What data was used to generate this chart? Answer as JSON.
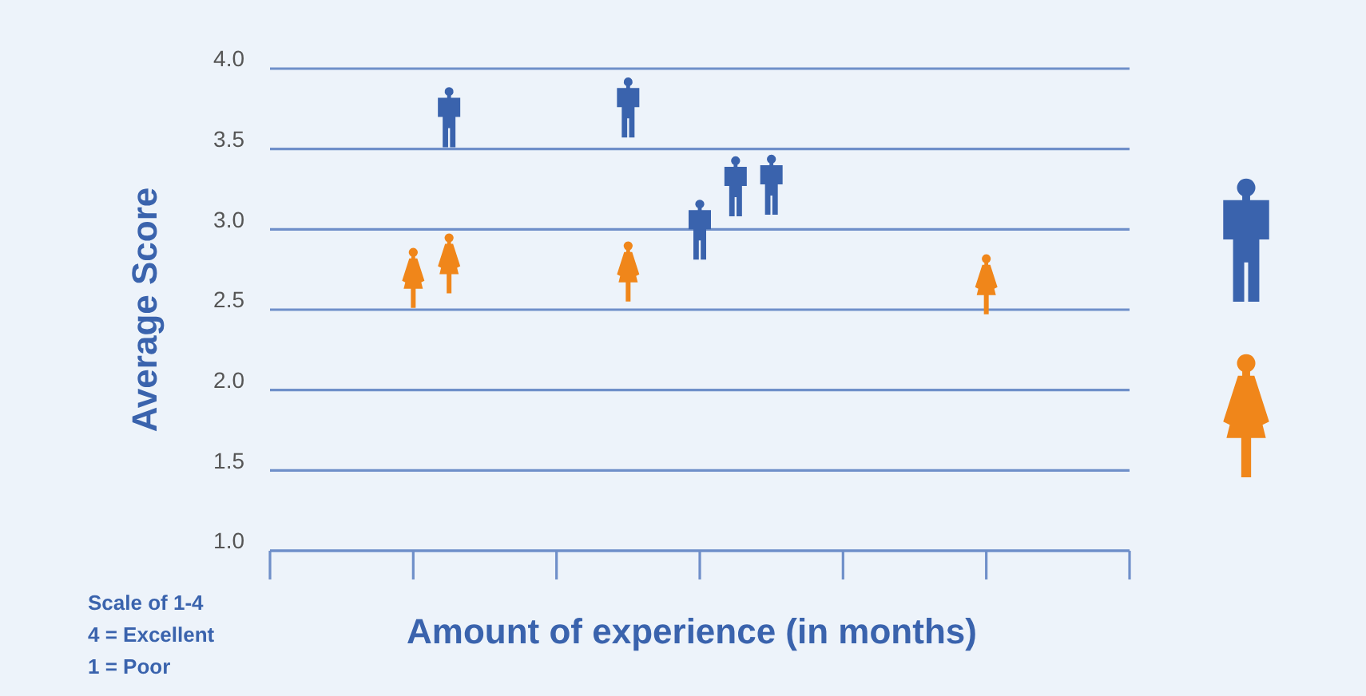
{
  "chart_data": {
    "type": "scatter",
    "ylabel": "Average Score",
    "xlabel": "Amount of experience (in months)",
    "categories": [
      null,
      null,
      null,
      null,
      null,
      null,
      null,
      null,
      null,
      null,
      null,
      null,
      null,
      null,
      null,
      null,
      null,
      null,
      null,
      null,
      null,
      null,
      null,
      null,
      null
    ],
    "ylim": [
      1,
      4
    ],
    "yticks": [
      {
        "value": 1,
        "label": "1.0"
      },
      {
        "value": 1.5,
        "label": "1.5"
      },
      {
        "value": 2,
        "label": "2.0"
      },
      {
        "value": 2.5,
        "label": "2.5"
      },
      {
        "value": 3,
        "label": "3.0"
      },
      {
        "value": 3.5,
        "label": "3.5"
      },
      {
        "value": 4,
        "label": "4.0"
      }
    ],
    "grid": "y",
    "series": [
      {
        "color": "#3a63ad",
        "values": [
          null,
          null,
          null,
          null,
          null,
          3.7,
          null,
          null,
          null,
          null,
          3.76,
          null,
          3.0,
          3.27,
          3.28,
          null,
          null,
          null,
          null,
          null,
          null,
          null,
          null,
          null,
          null
        ]
      },
      {
        "color": "#f0861a",
        "values": [
          null,
          null,
          null,
          null,
          2.7,
          2.79,
          null,
          null,
          null,
          null,
          2.74,
          null,
          null,
          null,
          null,
          null,
          null,
          null,
          null,
          null,
          2.66,
          null,
          null,
          null,
          null
        ]
      }
    ],
    "annotations": [
      "Scale of 1-4",
      "4 = Excellent",
      "1 = Poor"
    ]
  }
}
